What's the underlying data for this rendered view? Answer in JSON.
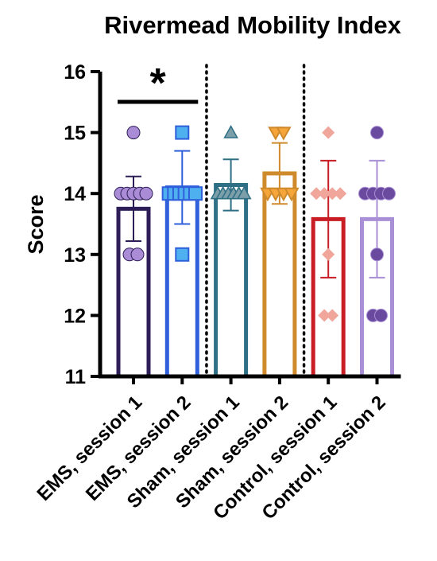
{
  "chart_data": {
    "type": "bar",
    "title": "Rivermead Mobility Index",
    "ylabel": "Score",
    "xlabel": "",
    "ylim": [
      11,
      16
    ],
    "yticks": [
      11,
      12,
      13,
      14,
      15,
      16
    ],
    "grid": false,
    "legend": "none",
    "categories": [
      "EMS, session 1",
      "EMS, session 2",
      "Sham, session 1",
      "Sham, session 2",
      "Control, session 1",
      "Control, session 2"
    ],
    "series": [
      {
        "values": [
          13.75,
          14.1,
          14.14,
          14.33,
          13.58,
          13.58
        ],
        "error": [
          0.53,
          0.6,
          0.42,
          0.5,
          0.96,
          0.96
        ],
        "bar_colors": [
          "#2d1e57",
          "#2f5fdb",
          "#2e6f86",
          "#cf8a2c",
          "#c81d25",
          "#a98fd6"
        ],
        "marker_shapes": [
          "circle",
          "square",
          "triangle-up",
          "triangle-down",
          "diamond",
          "circle"
        ],
        "marker_fills": [
          "#a98bd6",
          "#4fb0f0",
          "#7b9fa8",
          "#f5a53a",
          "#f0a69a",
          "#6a4a9e"
        ],
        "points": [
          [
            15,
            14,
            14,
            14,
            14,
            14,
            13,
            13
          ],
          [
            15,
            14,
            14,
            14,
            14,
            14,
            14,
            13
          ],
          [
            15,
            14,
            14,
            14,
            14,
            14,
            14
          ],
          [
            15,
            15,
            14,
            14,
            14,
            14
          ],
          [
            15,
            14,
            14,
            14,
            14,
            13,
            12,
            12
          ],
          [
            15,
            14,
            14,
            14,
            14,
            13,
            12,
            12
          ]
        ]
      }
    ],
    "significance": [
      {
        "from": 0,
        "to": 1,
        "label": "*"
      }
    ],
    "group_separators_after": [
      1,
      3
    ]
  }
}
